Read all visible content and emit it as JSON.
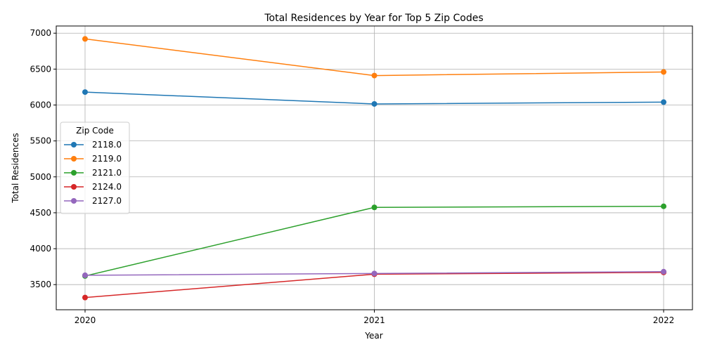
{
  "chart_data": {
    "type": "line",
    "title": "Total Residences by Year for Top 5 Zip Codes",
    "xlabel": "Year",
    "ylabel": "Total Residences",
    "x": [
      "2020",
      "2021",
      "2022"
    ],
    "ylim": [
      3150,
      7100
    ],
    "yticks": [
      3500,
      4000,
      4500,
      5000,
      5500,
      6000,
      6500,
      7000
    ],
    "grid": true,
    "legend": {
      "title": "Zip Code",
      "placement": "center-left"
    },
    "series": [
      {
        "name": "2118.0",
        "color": "#1f77b4",
        "values": [
          6180,
          6015,
          6040
        ]
      },
      {
        "name": "2119.0",
        "color": "#ff7f0e",
        "values": [
          6920,
          6410,
          6460
        ]
      },
      {
        "name": "2121.0",
        "color": "#2ca02c",
        "values": [
          3620,
          4575,
          4590
        ]
      },
      {
        "name": "2124.0",
        "color": "#d62728",
        "values": [
          3320,
          3645,
          3670
        ]
      },
      {
        "name": "2127.0",
        "color": "#9467bd",
        "values": [
          3630,
          3655,
          3680
        ]
      }
    ]
  }
}
